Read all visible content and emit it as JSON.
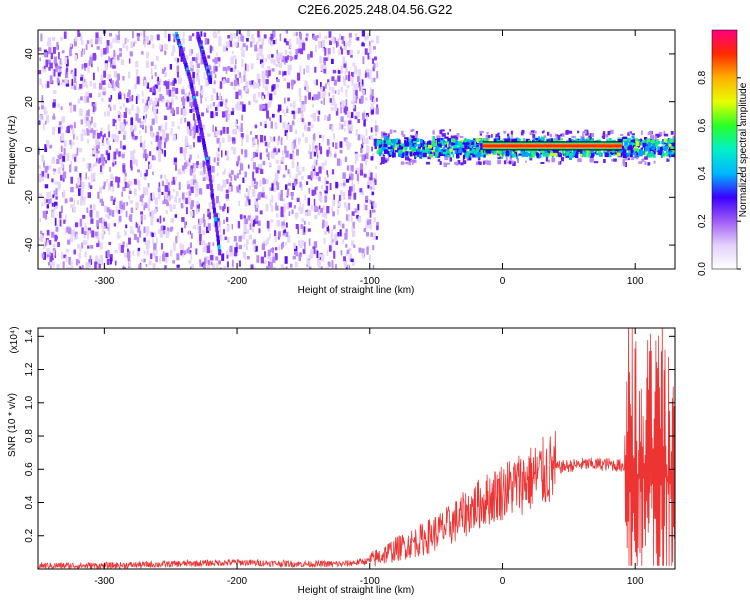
{
  "title": "C2E6.2025.248.04.56.G22",
  "chart_data": [
    {
      "type": "heatmap",
      "xlabel": "Height of straight line (km)",
      "ylabel": "Frequency (Hz)",
      "xlim": [
        -350,
        130
      ],
      "ylim": [
        -50,
        50
      ],
      "xticks": [
        "-300",
        "-200",
        "-100",
        "0",
        "100"
      ],
      "yticks": [
        "-40",
        "-20",
        "0",
        "20",
        "40"
      ],
      "colorbar": {
        "label": "Normalized spectral amplitude",
        "range": [
          0.0,
          1.0
        ],
        "ticks": [
          "0.0",
          "0.2",
          "0.4",
          "0.6",
          "0.8"
        ],
        "colors": [
          "#ffffff",
          "#e3d1fb",
          "#a05cf5",
          "#3b00ff",
          "#00b7ff",
          "#00f0c8",
          "#2bff26",
          "#e8ff00",
          "#ffb000",
          "#ff2a00",
          "#ff0080"
        ]
      },
      "features": [
        {
          "name": "dispersed noise",
          "x_range": [
            -350,
            -95
          ],
          "freq_range": [
            -50,
            50
          ],
          "amplitude": 0.1
        },
        {
          "name": "diagonal trace",
          "x": [
            -246,
            -236,
            -228,
            -221,
            -213
          ],
          "y": [
            48,
            30,
            10,
            -10,
            -45
          ],
          "amplitude": 0.25
        },
        {
          "name": "parallel trace",
          "x": [
            -230,
            -226,
            -220
          ],
          "y": [
            48,
            40,
            28
          ],
          "amplitude": 0.2
        },
        {
          "name": "carrier band",
          "x_range": [
            -95,
            130
          ],
          "freq_center": 1.5,
          "amplitude": 0.6
        },
        {
          "name": "strong carrier",
          "x_range": [
            -15,
            90
          ],
          "freq_center": 1.5,
          "amplitude": 1.0
        }
      ],
      "grid": false
    },
    {
      "type": "line",
      "xlabel": "Height of straight line (km)",
      "ylabel": "SNR (10 * v/v)",
      "multiplier_label": "(x10⁴)",
      "xlim": [
        -350,
        130
      ],
      "ylim": [
        0,
        1.45
      ],
      "xticks": [
        "-300",
        "-200",
        "-100",
        "0",
        "100"
      ],
      "yticks": [
        "0.2",
        "0.4",
        "0.6",
        "0.8",
        "1.0",
        "1.2",
        "1.4"
      ],
      "color": "#ee3333",
      "series": [
        {
          "x": [
            -350,
            -300,
            -250,
            -200,
            -150,
            -120,
            -100,
            -80,
            -60,
            -40,
            -20,
            0,
            20,
            40,
            60,
            80,
            92,
            95,
            100,
            110,
            120,
            130
          ],
          "y": [
            0.02,
            0.02,
            0.03,
            0.04,
            0.03,
            0.03,
            0.05,
            0.12,
            0.18,
            0.26,
            0.38,
            0.47,
            0.54,
            0.61,
            0.63,
            0.63,
            0.62,
            0.55,
            0.55,
            0.55,
            0.55,
            0.55
          ]
        }
      ],
      "grid": false
    }
  ]
}
